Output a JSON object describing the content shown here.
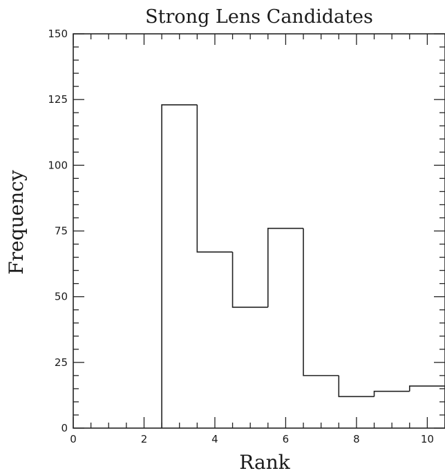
{
  "chart_data": {
    "type": "bar",
    "title": "Strong Lens Candidates",
    "xlabel": "Rank",
    "ylabel": "Frequency",
    "xlim": [
      0,
      10.5
    ],
    "ylim": [
      0,
      150
    ],
    "x_ticks": [
      0,
      2,
      4,
      6,
      8,
      10
    ],
    "y_ticks": [
      0,
      25,
      50,
      75,
      100,
      125,
      150
    ],
    "bin_width": 1,
    "categories": [
      3,
      4,
      5,
      6,
      7,
      8,
      9,
      10
    ],
    "values": [
      123,
      67,
      46,
      76,
      20,
      12,
      14,
      16
    ],
    "style": "step-histogram",
    "grid": false
  }
}
